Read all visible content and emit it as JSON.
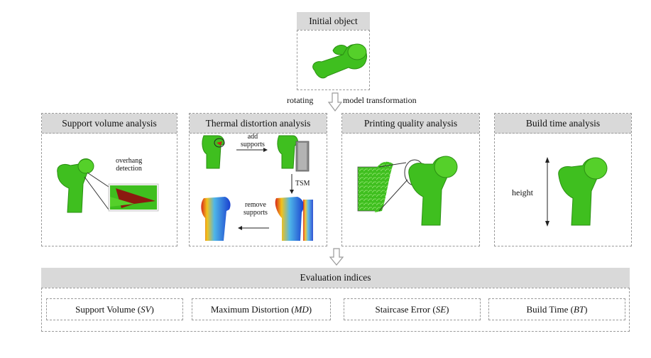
{
  "initial": {
    "title": "Initial object"
  },
  "transform": {
    "left_label": "rotating",
    "right_label": "model transformation"
  },
  "panels": [
    {
      "title": "Support volume analysis",
      "annotation": "overhang\ndetection"
    },
    {
      "title": "Thermal distortion analysis",
      "add_label": "add\nsupports",
      "remove_label": "remove\nsupports",
      "tsm_label": "TSM"
    },
    {
      "title": "Printing quality analysis"
    },
    {
      "title": "Build time analysis",
      "height_label": "height"
    }
  ],
  "evaluation": {
    "title": "Evaluation indices",
    "indices": [
      {
        "name": "Support Volume",
        "abbr": "SV"
      },
      {
        "name": "Maximum Distortion",
        "abbr": "MD"
      },
      {
        "name": "Staircase Error",
        "abbr": "SE"
      },
      {
        "name": "Build Time",
        "abbr": "BT"
      }
    ]
  },
  "colors": {
    "model_green": "#3fbf1f",
    "model_green_dark": "#2a8f12",
    "header_gray": "#d9d9d9",
    "border_gray": "#9a9a9a",
    "overhang_red": "#8b1a10"
  }
}
